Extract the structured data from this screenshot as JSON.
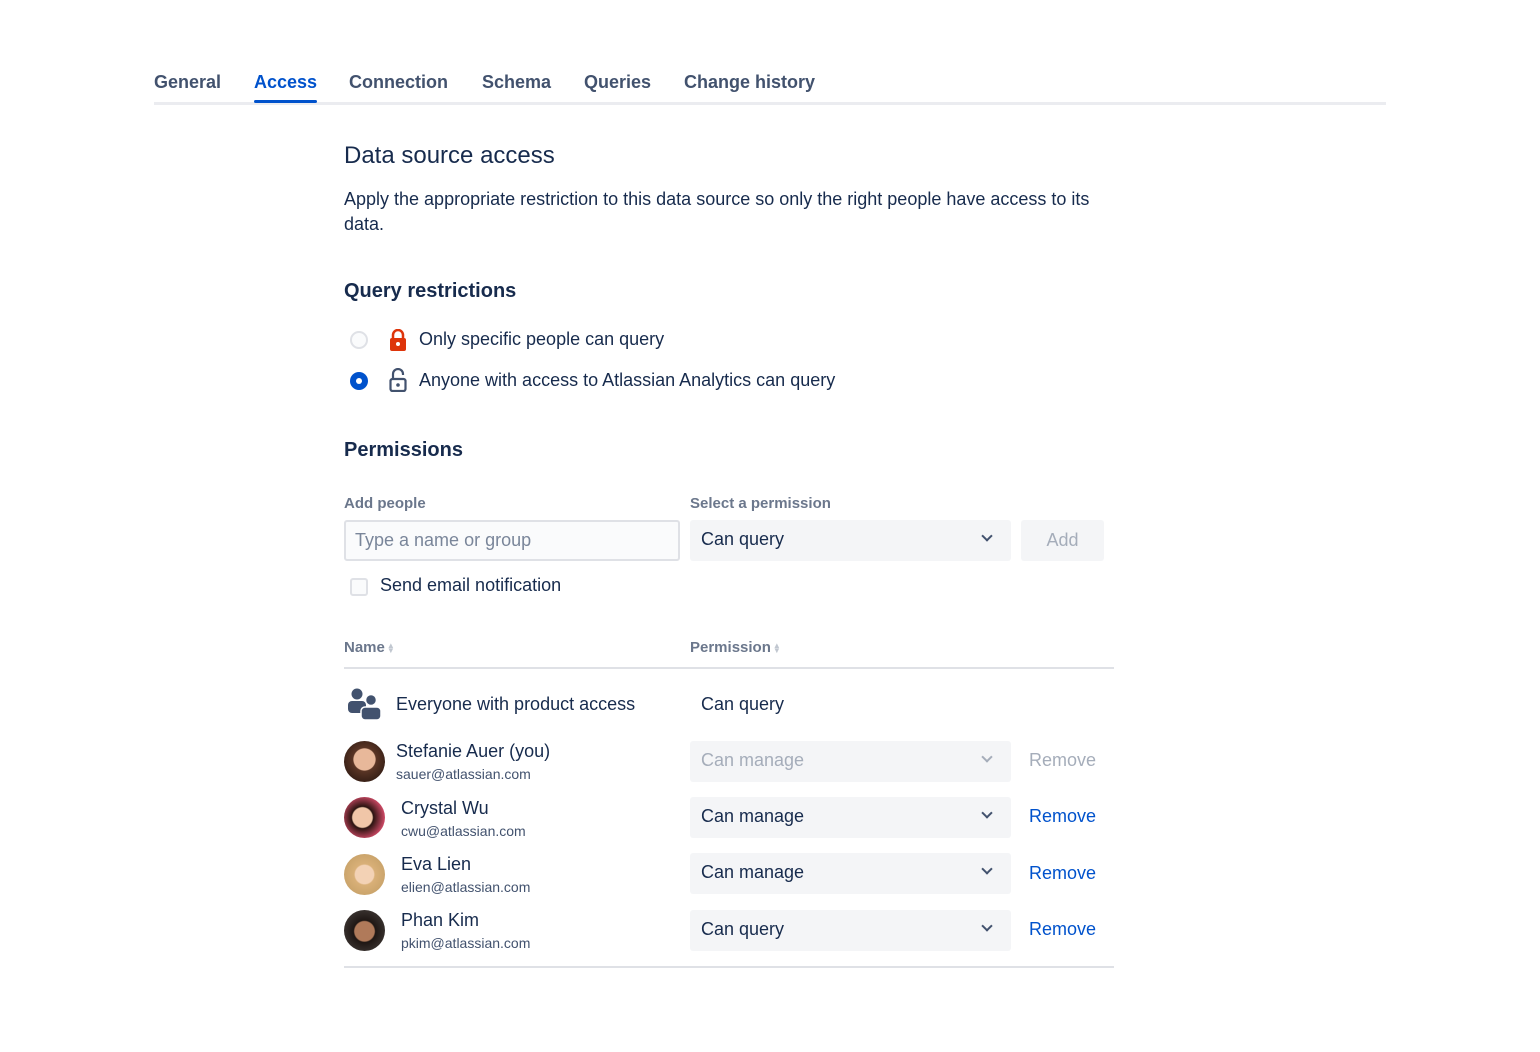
{
  "tabs": [
    "General",
    "Access",
    "Connection",
    "Schema",
    "Queries",
    "Change history"
  ],
  "active_tab": "Access",
  "title": "Data source access",
  "description": "Apply the appropriate restriction to this data source so only the right people have access to its data.",
  "query_restrictions": {
    "heading": "Query restrictions",
    "options": [
      {
        "label": "Only specific people can query",
        "selected": false,
        "icon": "lock-closed-icon",
        "icon_color": "#DE350B"
      },
      {
        "label": "Anyone with access to Atlassian Analytics can query",
        "selected": true,
        "icon": "lock-open-icon",
        "icon_color": "#42526E"
      }
    ]
  },
  "permissions": {
    "heading": "Permissions",
    "add_people_label": "Add people",
    "add_people_placeholder": "Type a name or group",
    "select_label": "Select a permission",
    "select_value": "Can query",
    "add_button": "Add",
    "email_notification": "Send email notification",
    "email_notification_checked": false
  },
  "table": {
    "columns": [
      "Name",
      "Permission"
    ],
    "group_row": {
      "name": "Everyone with product access",
      "permission": "Can query"
    },
    "rows": [
      {
        "name": "Stefanie Auer (you)",
        "email": "sauer@atlassian.com",
        "permission": "Can manage",
        "remove": "Remove",
        "disabled": true
      },
      {
        "name": "Crystal Wu",
        "email": "cwu@atlassian.com",
        "permission": "Can manage",
        "remove": "Remove",
        "disabled": false
      },
      {
        "name": "Eva Lien",
        "email": "elien@atlassian.com",
        "permission": "Can manage",
        "remove": "Remove",
        "disabled": false
      },
      {
        "name": "Phan Kim",
        "email": "pkim@atlassian.com",
        "permission": "Can query",
        "remove": "Remove",
        "disabled": false
      }
    ]
  },
  "colors": {
    "accent": "#0052CC",
    "text": "#172B4D",
    "subtle": "#6B778C",
    "danger": "#DE350B"
  }
}
